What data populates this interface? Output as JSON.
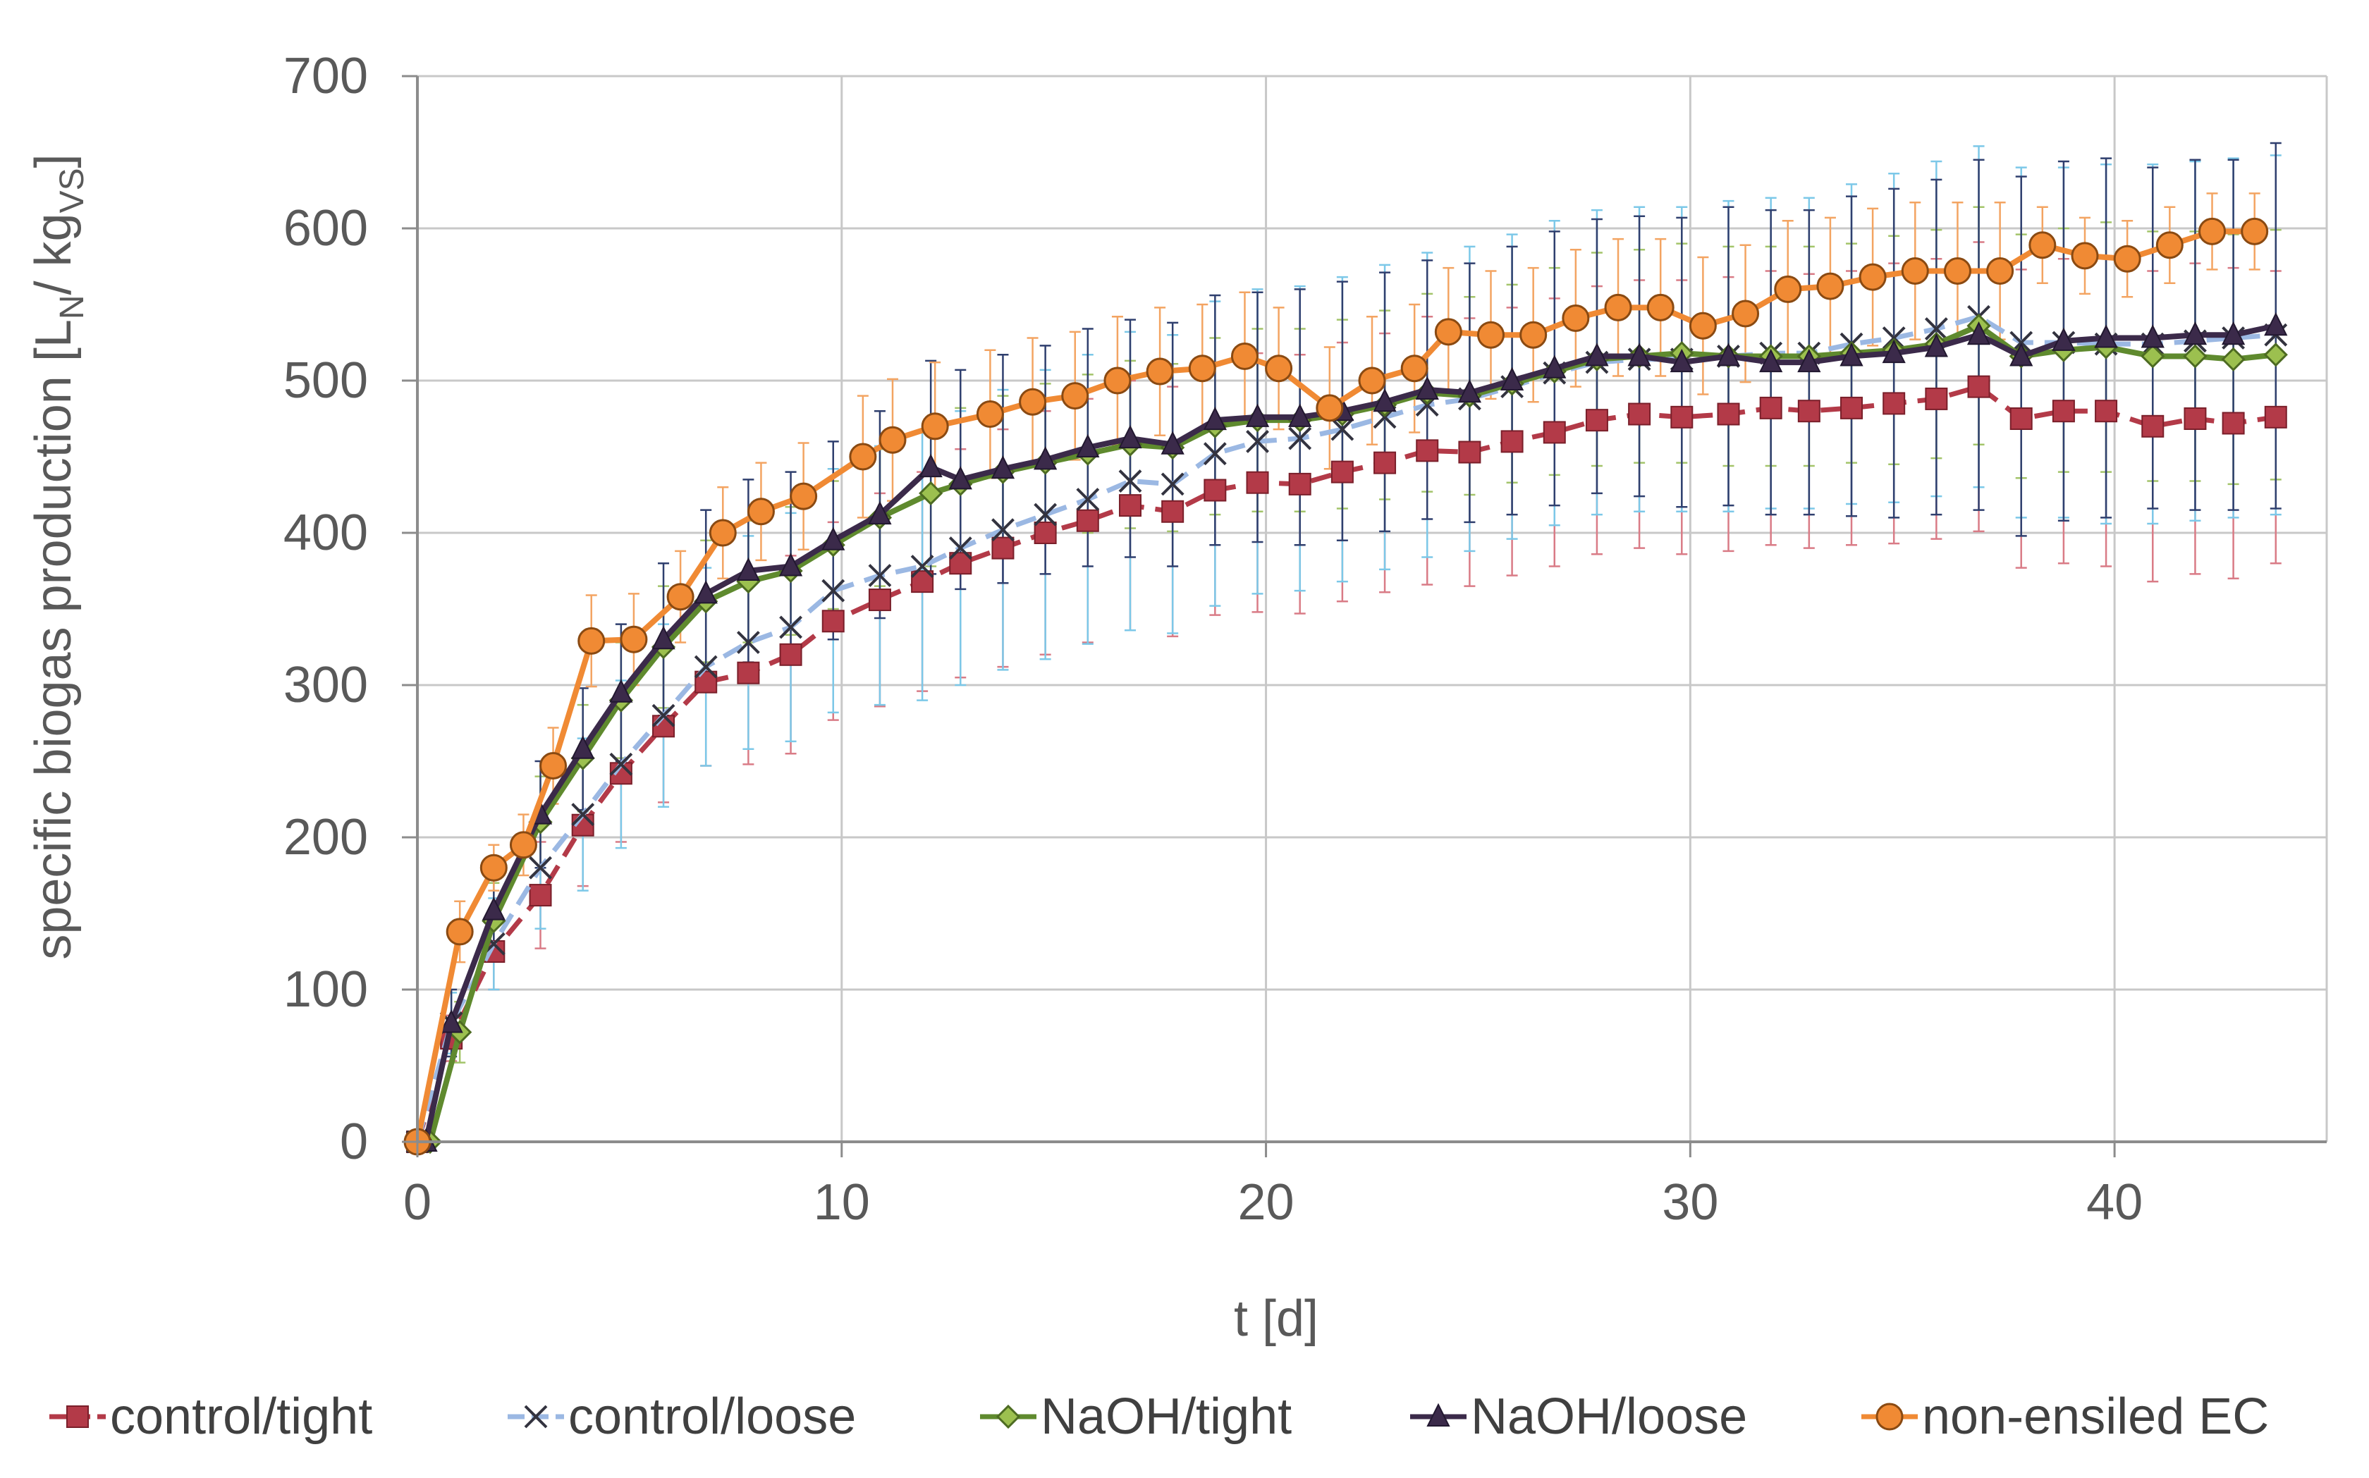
{
  "chart_data": {
    "type": "line",
    "ylabel_main": "specific biogas production  [L",
    "ylabel_sub1": "N",
    "ylabel_mid": "/ kg",
    "ylabel_sub2": "VS",
    "ylabel_end": "]",
    "xlabel": "t [d]",
    "xlim": [
      0,
      45
    ],
    "ylim": [
      0,
      700
    ],
    "x_ticks": [
      0,
      10,
      20,
      30,
      40
    ],
    "y_ticks": [
      0,
      100,
      200,
      300,
      400,
      500,
      600,
      700
    ],
    "x_tick_labels": [
      "0",
      "10",
      "20",
      "30",
      "40"
    ],
    "y_tick_labels": [
      "0",
      "100",
      "200",
      "300",
      "400",
      "500",
      "600",
      "700"
    ],
    "grid": true,
    "legend_position": "bottom",
    "series": [
      {
        "name": "control/tight",
        "color": "#b33a48",
        "line_style": "dashed",
        "marker": "square",
        "x": [
          0,
          0.8,
          1.8,
          2.9,
          3.9,
          4.8,
          5.8,
          6.8,
          7.8,
          8.8,
          9.8,
          10.9,
          11.9,
          12.8,
          13.8,
          14.8,
          15.8,
          16.8,
          17.8,
          18.8,
          19.8,
          20.8,
          21.8,
          22.8,
          23.8,
          24.8,
          25.8,
          26.8,
          27.8,
          28.8,
          29.8,
          30.9,
          31.9,
          32.8,
          33.8,
          34.8,
          35.8,
          36.8,
          37.8,
          38.8,
          39.8,
          40.9,
          41.9,
          42.8,
          43.8
        ],
        "y": [
          0,
          68,
          125,
          162,
          208,
          242,
          273,
          302,
          308,
          320,
          342,
          356,
          368,
          380,
          390,
          400,
          408,
          418,
          414,
          428,
          433,
          432,
          440,
          446,
          454,
          453,
          460,
          466,
          474,
          478,
          476,
          478,
          482,
          480,
          482,
          485,
          488,
          496,
          475,
          480,
          480,
          470,
          475,
          472,
          476
        ],
        "err": [
          0,
          15,
          25,
          35,
          40,
          45,
          50,
          55,
          60,
          65,
          65,
          70,
          72,
          75,
          78,
          80,
          80,
          82,
          82,
          82,
          85,
          85,
          85,
          85,
          88,
          88,
          88,
          88,
          88,
          88,
          90,
          90,
          90,
          90,
          90,
          92,
          92,
          95,
          98,
          100,
          102,
          102,
          102,
          102,
          96
        ]
      },
      {
        "name": "control/loose",
        "color": "#9bb8e3",
        "line_style": "dashed",
        "marker": "x",
        "x": [
          0,
          0.8,
          1.8,
          2.9,
          3.9,
          4.8,
          5.8,
          6.8,
          7.8,
          8.8,
          9.8,
          10.9,
          11.9,
          12.8,
          13.8,
          14.8,
          15.8,
          16.8,
          17.8,
          18.8,
          19.8,
          20.8,
          21.8,
          22.8,
          23.8,
          24.8,
          25.8,
          26.8,
          27.8,
          28.8,
          29.8,
          30.9,
          31.9,
          32.8,
          33.8,
          34.8,
          35.8,
          36.8,
          37.8,
          38.8,
          39.8,
          40.9,
          41.9,
          42.8,
          43.8
        ],
        "y": [
          0,
          78,
          130,
          180,
          215,
          248,
          280,
          312,
          328,
          338,
          362,
          372,
          378,
          390,
          402,
          412,
          422,
          434,
          432,
          452,
          460,
          462,
          468,
          476,
          484,
          488,
          496,
          505,
          512,
          514,
          514,
          516,
          518,
          518,
          524,
          528,
          534,
          542,
          525,
          525,
          524,
          524,
          526,
          528,
          530
        ],
        "err": [
          0,
          20,
          30,
          40,
          50,
          55,
          60,
          65,
          70,
          75,
          80,
          85,
          88,
          90,
          92,
          95,
          95,
          98,
          98,
          100,
          100,
          100,
          100,
          100,
          100,
          100,
          100,
          100,
          100,
          100,
          100,
          102,
          102,
          102,
          105,
          108,
          110,
          112,
          115,
          115,
          118,
          118,
          118,
          118,
          118
        ]
      },
      {
        "name": "NaOH/tight",
        "color": "#5f8a2e",
        "line_style": "solid",
        "marker": "diamond",
        "x": [
          0.3,
          1.0,
          1.8,
          2.9,
          3.9,
          4.8,
          5.8,
          6.8,
          7.8,
          8.8,
          9.8,
          10.9,
          12.1,
          12.8,
          13.8,
          14.8,
          15.8,
          16.8,
          17.8,
          18.8,
          19.8,
          20.8,
          21.8,
          22.8,
          23.8,
          24.8,
          25.8,
          26.8,
          27.8,
          28.8,
          29.8,
          30.9,
          31.9,
          32.8,
          33.8,
          34.8,
          35.8,
          36.8,
          37.8,
          38.8,
          39.8,
          40.9,
          41.9,
          42.8,
          43.8
        ],
        "y": [
          0,
          72,
          145,
          210,
          252,
          290,
          325,
          355,
          368,
          375,
          392,
          410,
          426,
          432,
          440,
          446,
          452,
          458,
          456,
          470,
          474,
          474,
          478,
          484,
          492,
          490,
          498,
          506,
          514,
          516,
          518,
          516,
          516,
          516,
          518,
          520,
          524,
          536,
          516,
          520,
          522,
          516,
          516,
          514,
          517
        ],
        "err": [
          0,
          20,
          25,
          30,
          35,
          38,
          40,
          40,
          40,
          42,
          42,
          45,
          48,
          50,
          50,
          52,
          52,
          55,
          55,
          58,
          60,
          60,
          62,
          62,
          65,
          65,
          65,
          68,
          70,
          70,
          72,
          72,
          72,
          72,
          72,
          75,
          75,
          78,
          80,
          80,
          82,
          82,
          82,
          82,
          82
        ]
      },
      {
        "name": "NaOH/loose",
        "color": "#3b2a4a",
        "line_style": "solid",
        "marker": "triangle",
        "x": [
          0.2,
          0.8,
          1.8,
          2.9,
          3.9,
          4.8,
          5.8,
          6.8,
          7.8,
          8.8,
          9.8,
          10.9,
          12.1,
          12.8,
          13.8,
          14.8,
          15.8,
          16.8,
          17.8,
          18.8,
          19.8,
          20.8,
          21.8,
          22.8,
          23.8,
          24.8,
          25.8,
          26.8,
          27.8,
          28.8,
          29.8,
          30.9,
          31.9,
          32.8,
          33.8,
          34.8,
          35.8,
          36.8,
          37.8,
          38.8,
          39.8,
          40.9,
          41.9,
          42.8,
          43.8
        ],
        "y": [
          0,
          78,
          152,
          215,
          258,
          295,
          330,
          360,
          375,
          378,
          395,
          412,
          443,
          435,
          442,
          448,
          456,
          462,
          458,
          474,
          476,
          476,
          480,
          486,
          494,
          492,
          500,
          508,
          516,
          516,
          512,
          516,
          512,
          512,
          516,
          518,
          522,
          530,
          516,
          526,
          528,
          528,
          530,
          530,
          536
        ],
        "err": [
          0,
          22,
          30,
          35,
          40,
          45,
          50,
          55,
          60,
          62,
          65,
          68,
          70,
          72,
          75,
          75,
          78,
          78,
          80,
          82,
          82,
          84,
          85,
          85,
          85,
          85,
          88,
          90,
          90,
          92,
          95,
          98,
          100,
          100,
          105,
          108,
          110,
          115,
          118,
          118,
          118,
          112,
          115,
          115,
          120
        ]
      },
      {
        "name": "non-ensiled EC",
        "color": "#f08a34",
        "line_style": "solid",
        "marker": "circle",
        "x": [
          0,
          1.0,
          1.8,
          2.5,
          3.2,
          4.1,
          5.1,
          6.2,
          7.2,
          8.1,
          9.1,
          10.5,
          11.2,
          12.2,
          13.5,
          14.5,
          15.5,
          16.5,
          17.5,
          18.5,
          19.5,
          20.3,
          21.5,
          22.5,
          23.5,
          24.3,
          25.3,
          26.3,
          27.3,
          28.3,
          29.3,
          30.3,
          31.3,
          32.3,
          33.3,
          34.3,
          35.3,
          36.3,
          37.3,
          38.3,
          39.3,
          40.3,
          41.3,
          42.3,
          43.3
        ],
        "y": [
          0,
          138,
          180,
          195,
          247,
          329,
          330,
          358,
          400,
          414,
          424,
          450,
          461,
          470,
          478,
          486,
          490,
          500,
          506,
          508,
          516,
          508,
          482,
          500,
          508,
          532,
          530,
          530,
          541,
          548,
          548,
          536,
          544,
          560,
          562,
          568,
          572,
          572,
          572,
          589,
          582,
          580,
          589,
          598,
          598
        ],
        "err": [
          0,
          20,
          15,
          20,
          25,
          30,
          30,
          30,
          30,
          32,
          35,
          40,
          40,
          42,
          42,
          42,
          42,
          42,
          42,
          42,
          42,
          40,
          40,
          42,
          42,
          42,
          42,
          44,
          45,
          45,
          45,
          45,
          45,
          45,
          45,
          45,
          45,
          45,
          45,
          25,
          25,
          25,
          25,
          25,
          25
        ]
      }
    ]
  }
}
